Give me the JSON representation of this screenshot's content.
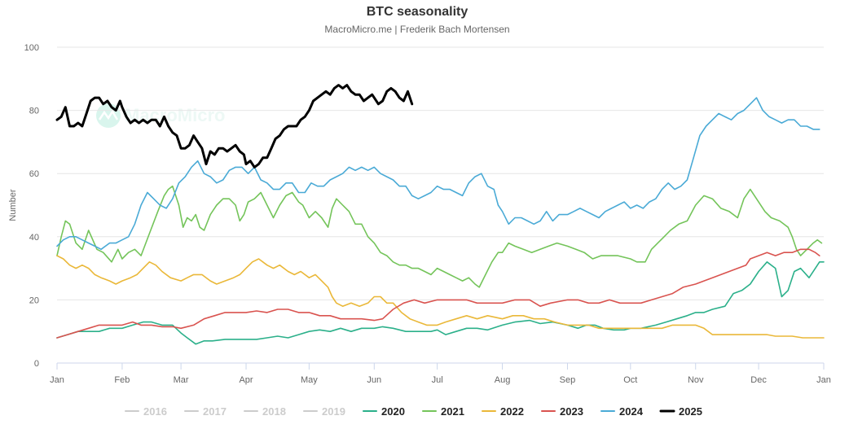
{
  "chart_data": {
    "type": "line",
    "title": "BTC seasonality",
    "subtitle": "MacroMicro.me | Frederik Bach Mortensen",
    "watermark": "MacroMicro",
    "ylabel": "Number",
    "ylim": [
      0,
      100
    ],
    "yticks": [
      0,
      20,
      40,
      60,
      80,
      100
    ],
    "xlim": [
      0,
      365
    ],
    "months": [
      {
        "label": "Jan",
        "day": 0
      },
      {
        "label": "Feb",
        "day": 31
      },
      {
        "label": "Mar",
        "day": 59
      },
      {
        "label": "Apr",
        "day": 90
      },
      {
        "label": "May",
        "day": 120
      },
      {
        "label": "Jun",
        "day": 151
      },
      {
        "label": "Jul",
        "day": 181
      },
      {
        "label": "Aug",
        "day": 212
      },
      {
        "label": "Sep",
        "day": 243
      },
      {
        "label": "Oct",
        "day": 273
      },
      {
        "label": "Nov",
        "day": 304
      },
      {
        "label": "Dec",
        "day": 334
      },
      {
        "label": "Jan",
        "day": 365
      }
    ],
    "series": [
      {
        "name": "2016",
        "visible": false,
        "color": "#cccccc",
        "x": [],
        "y": []
      },
      {
        "name": "2017",
        "visible": false,
        "color": "#cccccc",
        "x": [],
        "y": []
      },
      {
        "name": "2018",
        "visible": false,
        "color": "#cccccc",
        "x": [],
        "y": []
      },
      {
        "name": "2019",
        "visible": false,
        "color": "#cccccc",
        "x": [],
        "y": []
      },
      {
        "name": "2020",
        "visible": true,
        "color": "#2bb08a",
        "width": 1.6,
        "x": [
          0,
          5,
          10,
          15,
          20,
          25,
          31,
          36,
          41,
          45,
          50,
          55,
          59,
          62,
          66,
          70,
          74,
          80,
          86,
          90,
          95,
          100,
          105,
          110,
          115,
          120,
          125,
          130,
          135,
          140,
          145,
          151,
          155,
          160,
          166,
          172,
          178,
          181,
          185,
          190,
          195,
          200,
          205,
          212,
          218,
          225,
          230,
          236,
          243,
          248,
          252,
          256,
          260,
          265,
          270,
          273,
          278,
          285,
          290,
          295,
          300,
          304,
          308,
          312,
          318,
          322,
          326,
          330,
          334,
          338,
          342,
          345,
          348,
          351,
          354,
          358,
          361,
          363,
          365
        ],
        "y": [
          8,
          9,
          10,
          10,
          10,
          11,
          11,
          12,
          13,
          13,
          12,
          12,
          9.5,
          8,
          6,
          7,
          7,
          7.5,
          7.5,
          7.5,
          7.5,
          8,
          8.5,
          8,
          9,
          10,
          10.5,
          10,
          11,
          10,
          11,
          11,
          11.5,
          11,
          10,
          10,
          10,
          10.5,
          9,
          10,
          11,
          11,
          10.5,
          12,
          13,
          13.5,
          12.5,
          13,
          12,
          11,
          12,
          12,
          11,
          10.5,
          10.5,
          11,
          11,
          12,
          13,
          14,
          15,
          16,
          16,
          17,
          18,
          22,
          23,
          25,
          29,
          32,
          30,
          21,
          23,
          29,
          30,
          27,
          30,
          32,
          32
        ]
      },
      {
        "name": "2021",
        "visible": true,
        "color": "#74c45a",
        "width": 1.6,
        "x": [
          0,
          2,
          4,
          6,
          9,
          12,
          15,
          19,
          22,
          26,
          29,
          31,
          34,
          37,
          40,
          44,
          48,
          51,
          53,
          55,
          56,
          58,
          60,
          62,
          64,
          66,
          68,
          70,
          73,
          76,
          79,
          82,
          85,
          87,
          89,
          91,
          94,
          97,
          100,
          103,
          106,
          109,
          112,
          115,
          117,
          120,
          123,
          126,
          129,
          131,
          133,
          136,
          139,
          142,
          145,
          148,
          151,
          154,
          157,
          160,
          163,
          166,
          169,
          172,
          175,
          178,
          181,
          184,
          187,
          190,
          193,
          196,
          199,
          201,
          204,
          207,
          210,
          212,
          215,
          218,
          222,
          226,
          230,
          234,
          238,
          243,
          247,
          251,
          255,
          259,
          263,
          267,
          273,
          276,
          280,
          283,
          286,
          289,
          292,
          296,
          300,
          304,
          308,
          312,
          316,
          320,
          324,
          327,
          330,
          333,
          337,
          340,
          344,
          346,
          348,
          350,
          352,
          354,
          357,
          360,
          362,
          364
        ],
        "y": [
          34,
          40,
          45,
          44,
          38,
          36,
          42,
          36,
          35,
          32,
          36,
          33,
          35,
          36,
          34,
          41,
          48,
          53,
          55,
          56,
          54,
          50,
          43,
          46,
          45,
          47,
          43,
          42,
          47,
          50,
          52,
          52,
          50,
          45,
          47,
          51,
          52,
          54,
          50,
          46,
          50,
          53,
          54,
          51,
          50,
          46,
          48,
          46,
          43,
          49,
          52,
          50,
          48,
          44,
          44,
          40,
          38,
          35,
          34,
          32,
          31,
          31,
          30,
          30,
          29,
          28,
          30,
          29,
          28,
          27,
          26,
          27,
          25,
          24,
          28,
          32,
          35,
          35,
          38,
          37,
          36,
          35,
          36,
          37,
          38,
          37,
          36,
          35,
          33,
          34,
          34,
          34,
          33,
          32,
          32,
          36,
          38,
          40,
          42,
          44,
          45,
          50,
          53,
          52,
          49,
          48,
          46,
          52,
          55,
          52,
          48,
          46,
          45,
          44,
          43,
          40,
          36,
          34,
          36,
          38,
          39,
          38
        ]
      },
      {
        "name": "2022",
        "visible": true,
        "color": "#eab839",
        "width": 1.6,
        "x": [
          0,
          3,
          6,
          9,
          12,
          15,
          18,
          21,
          25,
          28,
          31,
          35,
          38,
          41,
          44,
          47,
          50,
          54,
          59,
          62,
          65,
          69,
          73,
          76,
          80,
          84,
          87,
          90,
          93,
          96,
          100,
          103,
          106,
          110,
          113,
          116,
          120,
          123,
          126,
          129,
          131,
          133,
          136,
          140,
          144,
          148,
          151,
          154,
          157,
          160,
          164,
          168,
          172,
          176,
          181,
          185,
          190,
          195,
          200,
          205,
          212,
          217,
          222,
          227,
          232,
          237,
          243,
          248,
          253,
          258,
          263,
          268,
          273,
          278,
          283,
          288,
          293,
          298,
          304,
          308,
          312,
          316,
          320,
          325,
          330,
          334,
          338,
          342,
          346,
          350,
          355,
          360,
          363,
          365
        ],
        "y": [
          34,
          33,
          31,
          30,
          31,
          30,
          28,
          27,
          26,
          25,
          26,
          27,
          28,
          30,
          32,
          31,
          29,
          27,
          26,
          27,
          28,
          28,
          26,
          25,
          26,
          27,
          28,
          30,
          32,
          33,
          31,
          30,
          31,
          29,
          28,
          29,
          27,
          28,
          26,
          24,
          21,
          19,
          18,
          19,
          18,
          19,
          21,
          21,
          19,
          19,
          16,
          14,
          13,
          12,
          12,
          13,
          14,
          15,
          14,
          15,
          14,
          15,
          15,
          14,
          14,
          13,
          12,
          12,
          12,
          11,
          11,
          11,
          11,
          11,
          11,
          11,
          12,
          12,
          12,
          11,
          9,
          9,
          9,
          9,
          9,
          9,
          9,
          8.5,
          8.5,
          8.5,
          8,
          8,
          8,
          8
        ]
      },
      {
        "name": "2023",
        "visible": true,
        "color": "#d9534f",
        "width": 1.6,
        "x": [
          0,
          5,
          10,
          15,
          20,
          25,
          31,
          36,
          40,
          45,
          50,
          55,
          59,
          65,
          70,
          75,
          80,
          85,
          90,
          95,
          100,
          105,
          110,
          115,
          120,
          125,
          130,
          135,
          140,
          145,
          151,
          155,
          160,
          165,
          170,
          175,
          181,
          185,
          190,
          195,
          200,
          205,
          212,
          218,
          225,
          230,
          235,
          243,
          248,
          253,
          258,
          263,
          268,
          273,
          278,
          283,
          288,
          293,
          298,
          304,
          308,
          312,
          316,
          320,
          324,
          328,
          330,
          334,
          338,
          342,
          346,
          350,
          354,
          358,
          361,
          363
        ],
        "y": [
          8,
          9,
          10,
          11,
          12,
          12,
          12,
          13,
          12,
          12,
          11.5,
          11.5,
          11,
          12,
          14,
          15,
          16,
          16,
          16,
          16.5,
          16,
          17,
          17,
          16,
          16,
          15,
          15,
          14,
          14,
          14,
          13.5,
          14,
          17,
          19,
          20,
          19,
          20,
          20,
          20,
          20,
          19,
          19,
          19,
          20,
          20,
          18,
          19,
          20,
          20,
          19,
          19,
          20,
          19,
          19,
          19,
          20,
          21,
          22,
          24,
          25,
          26,
          27,
          28,
          29,
          30,
          31,
          33,
          34,
          35,
          34,
          35,
          35,
          36,
          36,
          35,
          34
        ]
      },
      {
        "name": "2024",
        "visible": true,
        "color": "#4aaad6",
        "width": 1.6,
        "x": [
          0,
          3,
          6,
          9,
          12,
          15,
          18,
          21,
          25,
          28,
          31,
          34,
          37,
          40,
          43,
          46,
          49,
          52,
          55,
          58,
          61,
          64,
          67,
          70,
          73,
          76,
          79,
          82,
          85,
          88,
          91,
          94,
          97,
          100,
          103,
          106,
          109,
          112,
          115,
          118,
          121,
          124,
          127,
          130,
          133,
          136,
          139,
          142,
          145,
          148,
          151,
          154,
          157,
          160,
          163,
          166,
          169,
          172,
          175,
          178,
          181,
          184,
          187,
          190,
          193,
          196,
          199,
          202,
          205,
          208,
          210,
          212,
          215,
          218,
          221,
          224,
          227,
          230,
          233,
          236,
          239,
          243,
          246,
          249,
          252,
          255,
          258,
          261,
          264,
          267,
          270,
          273,
          276,
          279,
          282,
          285,
          288,
          291,
          294,
          297,
          300,
          303,
          306,
          309,
          312,
          315,
          318,
          321,
          324,
          327,
          330,
          333,
          336,
          339,
          342,
          345,
          348,
          351,
          354,
          357,
          360,
          363
        ],
        "y": [
          37,
          39,
          40,
          40,
          39,
          38,
          37,
          36,
          38,
          38,
          39,
          40,
          44,
          50,
          54,
          52,
          50,
          49,
          52,
          57,
          59,
          62,
          64,
          60,
          59,
          57,
          58,
          61,
          62,
          62,
          60,
          62,
          58,
          57,
          55,
          55,
          57,
          57,
          54,
          54,
          57,
          56,
          56,
          58,
          59,
          60,
          62,
          61,
          62,
          61,
          62,
          60,
          59,
          58,
          56,
          56,
          53,
          52,
          53,
          54,
          56,
          55,
          55,
          54,
          53,
          57,
          59,
          60,
          56,
          55,
          50,
          48,
          44,
          46,
          46,
          45,
          44,
          45,
          48,
          45,
          47,
          47,
          48,
          49,
          48,
          47,
          46,
          48,
          49,
          50,
          51,
          49,
          50,
          49,
          51,
          52,
          55,
          57,
          55,
          56,
          58,
          65,
          72,
          75,
          77,
          79,
          78,
          77,
          79,
          80,
          82,
          84,
          80,
          78,
          77,
          76,
          77,
          77,
          75,
          75,
          74,
          74
        ]
      },
      {
        "name": "2025",
        "visible": true,
        "color": "#000000",
        "width": 3,
        "x": [
          0,
          2,
          4,
          6,
          8,
          10,
          12,
          14,
          16,
          18,
          20,
          22,
          24,
          26,
          28,
          30,
          31,
          33,
          35,
          37,
          39,
          41,
          43,
          45,
          47,
          49,
          51,
          53,
          55,
          57,
          59,
          61,
          63,
          65,
          67,
          69,
          71,
          73,
          75,
          77,
          79,
          81,
          83,
          85,
          87,
          89,
          90,
          92,
          94,
          96,
          98,
          100,
          102,
          104,
          106,
          108,
          110,
          112,
          114,
          116,
          118,
          120,
          122,
          124,
          126,
          128,
          130,
          132,
          134,
          136,
          138,
          140,
          142,
          144,
          146,
          148,
          150,
          151,
          153,
          155,
          157,
          159,
          161,
          163,
          165,
          167,
          169
        ],
        "y": [
          77,
          78,
          81,
          75,
          75,
          76,
          75,
          79,
          83,
          84,
          84,
          82,
          83,
          81,
          80,
          83,
          81,
          78,
          76,
          77,
          76,
          77,
          76,
          77,
          77,
          75,
          78,
          75,
          73,
          72,
          68,
          68,
          69,
          72,
          70,
          68,
          63,
          67,
          66,
          68,
          68,
          67,
          68,
          69,
          67,
          66,
          63,
          64,
          62,
          63,
          65,
          65,
          68,
          71,
          72,
          74,
          75,
          75,
          75,
          77,
          78,
          80,
          83,
          84,
          85,
          86,
          85,
          87,
          88,
          87,
          88,
          86,
          85,
          85,
          83,
          84,
          85,
          84,
          82,
          83,
          86,
          87,
          86,
          84,
          83,
          86,
          82
        ]
      }
    ]
  }
}
